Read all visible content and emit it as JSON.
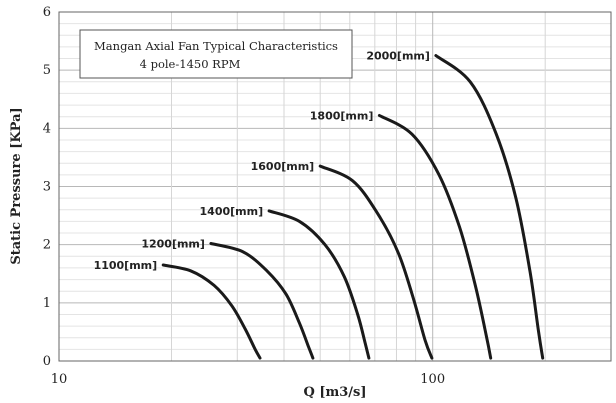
{
  "chart_data": {
    "type": "line",
    "title": "Mangan Axial Fan Typical Characteristics",
    "subtitle": "4 pole-1450 RPM",
    "xlabel": "Q [m3/s]",
    "ylabel": "Static Pressure [KPa]",
    "x_scale": "log",
    "xlim": [
      10,
      300
    ],
    "ylim": [
      0,
      6
    ],
    "x_ticks": [
      "10",
      "100"
    ],
    "y_ticks": [
      "0",
      "1",
      "2",
      "3",
      "4",
      "5",
      "6"
    ],
    "grid": true,
    "line_color": "#1a1a1a",
    "series": [
      {
        "name": "1100[mm]",
        "x": [
          19.0,
          22.5,
          26.0,
          29.0,
          31.5,
          33.5,
          34.5
        ],
        "y": [
          1.65,
          1.55,
          1.3,
          0.95,
          0.55,
          0.2,
          0.05
        ]
      },
      {
        "name": "1200[mm]",
        "x": [
          25.5,
          31.0,
          36.0,
          40.5,
          44.0,
          46.5,
          47.8
        ],
        "y": [
          2.02,
          1.88,
          1.55,
          1.15,
          0.65,
          0.25,
          0.05
        ]
      },
      {
        "name": "1400[mm]",
        "x": [
          36.5,
          44.0,
          51.5,
          58.0,
          63.0,
          66.0,
          67.5
        ],
        "y": [
          2.58,
          2.4,
          2.0,
          1.45,
          0.8,
          0.3,
          0.05
        ]
      },
      {
        "name": "1600[mm]",
        "x": [
          50.0,
          61.0,
          71.0,
          81.0,
          89.0,
          95.5,
          99.5
        ],
        "y": [
          3.35,
          3.1,
          2.55,
          1.85,
          1.05,
          0.35,
          0.05
        ]
      },
      {
        "name": "1800[mm]",
        "x": [
          72.0,
          88.0,
          104.0,
          118.0,
          130.0,
          139.0,
          143.0
        ],
        "y": [
          4.22,
          3.9,
          3.2,
          2.3,
          1.3,
          0.45,
          0.05
        ]
      },
      {
        "name": "2000[mm]",
        "x": [
          102.0,
          126.0,
          148.0,
          167.0,
          182.0,
          192.0,
          197.0
        ],
        "y": [
          5.25,
          4.8,
          3.9,
          2.8,
          1.55,
          0.5,
          0.05
        ]
      }
    ]
  }
}
